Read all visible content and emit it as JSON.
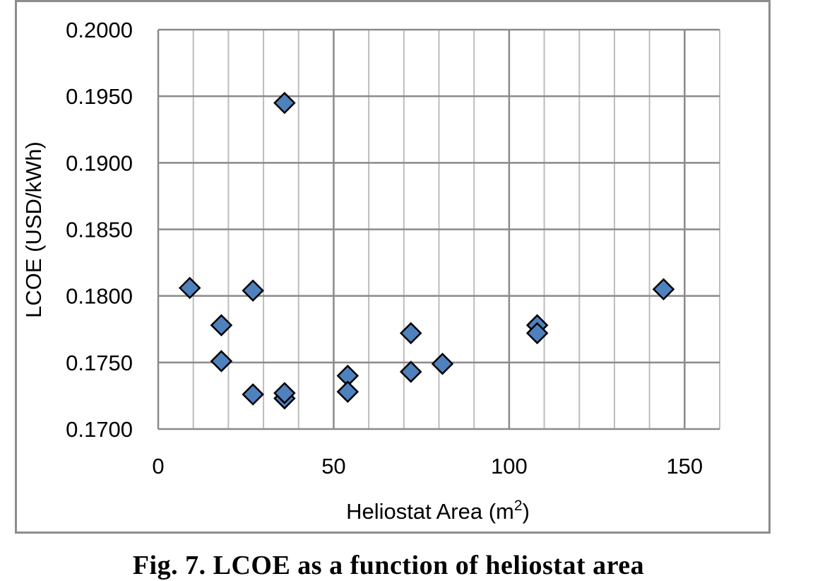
{
  "chart_data": {
    "type": "scatter",
    "title": "",
    "xlabel": "Heliostat Area (m",
    "xlabel_sup": "2",
    "xlabel_end": ")",
    "ylabel": "LCOE (USD/kWh)",
    "xlim": [
      0,
      160
    ],
    "ylim": [
      0.17,
      0.2
    ],
    "x_ticks": [
      0,
      50,
      100,
      150
    ],
    "x_tick_labels": [
      "0",
      "50",
      "100",
      "150"
    ],
    "y_ticks": [
      0.17,
      0.175,
      0.18,
      0.185,
      0.19,
      0.195,
      0.2
    ],
    "y_tick_labels": [
      "0.1700",
      "0.1750",
      "0.1800",
      "0.1850",
      "0.1900",
      "0.1950",
      "0.2000"
    ],
    "x_minor_step": 10,
    "grid": true,
    "marker": "diamond",
    "marker_color": "#4f81bd",
    "series": [
      {
        "name": "LCOE",
        "points": [
          [
            9,
            0.1806
          ],
          [
            18,
            0.1778
          ],
          [
            18,
            0.1751
          ],
          [
            27,
            0.1804
          ],
          [
            27,
            0.1726
          ],
          [
            36,
            0.1945
          ],
          [
            36,
            0.1723
          ],
          [
            36,
            0.1727
          ],
          [
            54,
            0.174
          ],
          [
            54,
            0.1728
          ],
          [
            72,
            0.1772
          ],
          [
            72,
            0.1743
          ],
          [
            81,
            0.1749
          ],
          [
            108,
            0.1778
          ],
          [
            108,
            0.1772
          ],
          [
            144,
            0.1805
          ]
        ]
      }
    ]
  },
  "caption": "Fig. 7. LCOE as a function of heliostat area"
}
